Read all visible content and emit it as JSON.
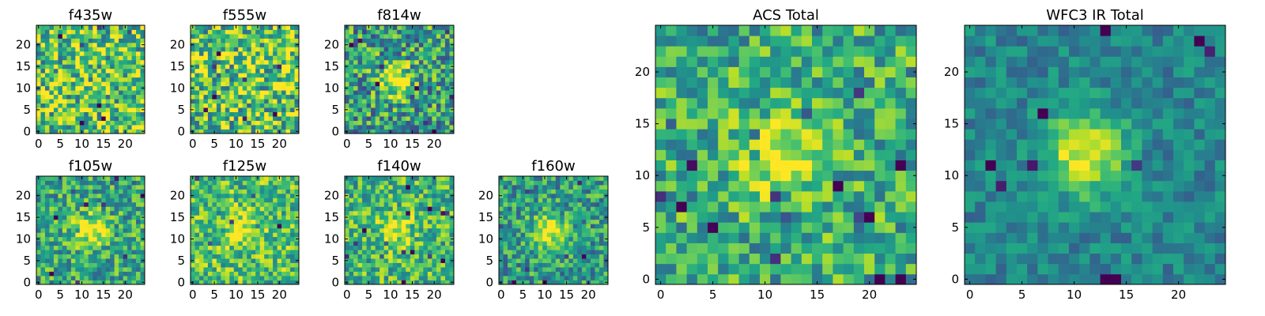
{
  "figure": {
    "colormap": "viridis",
    "colors": {
      "low": "#440154",
      "mid": "#21918c",
      "high": "#fde725",
      "axes": "#000000",
      "background": "#ffffff"
    }
  },
  "chart_data": [
    {
      "type": "heatmap",
      "title": "f435w",
      "grid_size": 25,
      "xticks": [
        0,
        5,
        10,
        15,
        20
      ],
      "yticks": [
        0,
        5,
        10,
        15,
        20
      ],
      "xlim": [
        0,
        24
      ],
      "ylim": [
        0,
        24
      ],
      "source_peak": null,
      "signal": 0.05,
      "noise": 0.75,
      "background_level": 0.72,
      "seed": 11
    },
    {
      "type": "heatmap",
      "title": "f555w",
      "grid_size": 25,
      "xticks": [
        0,
        5,
        10,
        15,
        20
      ],
      "yticks": [
        0,
        5,
        10,
        15,
        20
      ],
      "xlim": [
        0,
        24
      ],
      "ylim": [
        0,
        24
      ],
      "source_peak": null,
      "signal": 0.05,
      "noise": 0.8,
      "background_level": 0.73,
      "seed": 23
    },
    {
      "type": "heatmap",
      "title": "f814w",
      "grid_size": 25,
      "xticks": [
        0,
        5,
        10,
        15,
        20
      ],
      "yticks": [
        0,
        5,
        10,
        15,
        20
      ],
      "xlim": [
        0,
        24
      ],
      "ylim": [
        0,
        24
      ],
      "source_peak": [
        11,
        12
      ],
      "signal": 0.55,
      "noise": 0.7,
      "background_level": 0.55,
      "seed": 37
    },
    {
      "type": "heatmap",
      "title": "f105w",
      "grid_size": 25,
      "xticks": [
        0,
        5,
        10,
        15,
        20
      ],
      "yticks": [
        0,
        5,
        10,
        15,
        20
      ],
      "xlim": [
        0,
        24
      ],
      "ylim": [
        0,
        24
      ],
      "source_peak": [
        12,
        12
      ],
      "signal": 0.45,
      "noise": 0.55,
      "background_level": 0.6,
      "seed": 41
    },
    {
      "type": "heatmap",
      "title": "f125w",
      "grid_size": 25,
      "xticks": [
        0,
        5,
        10,
        15,
        20
      ],
      "yticks": [
        0,
        5,
        10,
        15,
        20
      ],
      "xlim": [
        0,
        24
      ],
      "ylim": [
        0,
        24
      ],
      "source_peak": [
        12,
        12
      ],
      "signal": 0.3,
      "noise": 0.55,
      "background_level": 0.7,
      "seed": 53
    },
    {
      "type": "heatmap",
      "title": "f140w",
      "grid_size": 25,
      "xticks": [
        0,
        5,
        10,
        15,
        20
      ],
      "yticks": [
        0,
        5,
        10,
        15,
        20
      ],
      "xlim": [
        0,
        24
      ],
      "ylim": [
        0,
        24
      ],
      "source_peak": [
        11,
        12
      ],
      "signal": 0.35,
      "noise": 0.55,
      "background_level": 0.66,
      "seed": 67
    },
    {
      "type": "heatmap",
      "title": "f160w",
      "grid_size": 25,
      "xticks": [
        0,
        5,
        10,
        15,
        20
      ],
      "yticks": [
        0,
        5,
        10,
        15,
        20
      ],
      "xlim": [
        0,
        24
      ],
      "ylim": [
        0,
        24
      ],
      "source_peak": [
        11,
        12
      ],
      "signal": 0.5,
      "noise": 0.55,
      "background_level": 0.55,
      "seed": 79
    },
    {
      "type": "heatmap",
      "title": "ACS Total",
      "grid_size": 25,
      "xticks": [
        0,
        5,
        10,
        15,
        20
      ],
      "yticks": [
        0,
        5,
        10,
        15,
        20
      ],
      "xlim": [
        0,
        24
      ],
      "ylim": [
        0,
        24
      ],
      "source_peak": [
        11,
        12
      ],
      "signal": 0.4,
      "noise": 0.55,
      "background_level": 0.62,
      "seed": 83
    },
    {
      "type": "heatmap",
      "title": "WFC3 IR Total",
      "grid_size": 25,
      "xticks": [
        0,
        5,
        10,
        15,
        20
      ],
      "yticks": [
        0,
        5,
        10,
        15,
        20
      ],
      "xlim": [
        0,
        24
      ],
      "ylim": [
        0,
        24
      ],
      "source_peak": [
        11,
        12
      ],
      "signal": 0.55,
      "noise": 0.3,
      "background_level": 0.45,
      "seed": 97
    }
  ]
}
